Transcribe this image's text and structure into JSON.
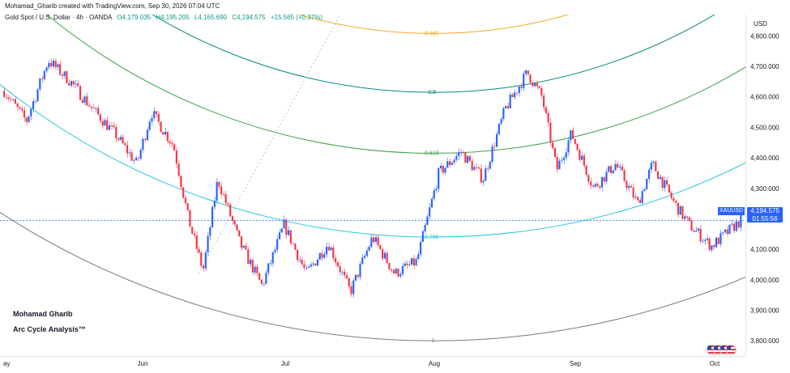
{
  "header": {
    "credit": "Mohamad_Gharib created with TradingView.com, Sep 30, 2026 07:04 UTC",
    "symbol": "Gold Spot / U.S. Dollar · 4h · OANDA",
    "open": "O4,179.035",
    "high": "H4,195.205",
    "low": "L4,165.690",
    "close": "C4,194.575",
    "change": "+15.565 (+0.37%)"
  },
  "watermark": {
    "line1": "Mohamad Gharib",
    "line2": "Arc Cycle Analysis™"
  },
  "price_tag": {
    "symbol": "XAUUSD",
    "price": "4,194.575",
    "countdown": "01:55:56"
  },
  "colors": {
    "up": "#2962ff",
    "down": "#f23645",
    "arc_0382": "#f5a623",
    "arc_05": "#00897b",
    "arc_0618": "#43a047",
    "arc_0786": "#26c6da",
    "arc_1": "#787b86"
  },
  "chart_data": {
    "type": "candlestick",
    "currency": "USD",
    "x_ticks": [
      "ay",
      "Jun",
      "Jul",
      "Aug",
      "Sep",
      "Oct"
    ],
    "y_ticks": [
      "4,800.000",
      "4,700.000",
      "4,600.000",
      "4,500.000",
      "4,400.000",
      "4,300.000",
      "4,200.000",
      "4,100.000",
      "4,000.000",
      "3,900.000",
      "3,800.000"
    ],
    "y_tick_values": [
      4800,
      4700,
      4600,
      4500,
      4400,
      4300,
      4200,
      4100,
      4000,
      3900,
      3800
    ],
    "ylim": [
      3750,
      4870
    ],
    "last_price": 4194.575,
    "path": [
      {
        "t": 0.0,
        "p": 4620
      },
      {
        "t": 0.03,
        "p": 4520
      },
      {
        "t": 0.06,
        "p": 4720
      },
      {
        "t": 0.09,
        "p": 4650
      },
      {
        "t": 0.12,
        "p": 4560
      },
      {
        "t": 0.15,
        "p": 4480
      },
      {
        "t": 0.18,
        "p": 4380
      },
      {
        "t": 0.2,
        "p": 4550
      },
      {
        "t": 0.23,
        "p": 4440
      },
      {
        "t": 0.25,
        "p": 4200
      },
      {
        "t": 0.27,
        "p": 4030
      },
      {
        "t": 0.29,
        "p": 4330
      },
      {
        "t": 0.32,
        "p": 4120
      },
      {
        "t": 0.35,
        "p": 3980
      },
      {
        "t": 0.38,
        "p": 4180
      },
      {
        "t": 0.41,
        "p": 4020
      },
      {
        "t": 0.44,
        "p": 4120
      },
      {
        "t": 0.47,
        "p": 3960
      },
      {
        "t": 0.5,
        "p": 4140
      },
      {
        "t": 0.53,
        "p": 4020
      },
      {
        "t": 0.56,
        "p": 4060
      },
      {
        "t": 0.59,
        "p": 4350
      },
      {
        "t": 0.62,
        "p": 4420
      },
      {
        "t": 0.65,
        "p": 4330
      },
      {
        "t": 0.68,
        "p": 4560
      },
      {
        "t": 0.71,
        "p": 4680
      },
      {
        "t": 0.73,
        "p": 4600
      },
      {
        "t": 0.75,
        "p": 4360
      },
      {
        "t": 0.77,
        "p": 4480
      },
      {
        "t": 0.8,
        "p": 4300
      },
      {
        "t": 0.83,
        "p": 4380
      },
      {
        "t": 0.86,
        "p": 4250
      },
      {
        "t": 0.88,
        "p": 4380
      },
      {
        "t": 0.91,
        "p": 4250
      },
      {
        "t": 0.93,
        "p": 4180
      },
      {
        "t": 0.96,
        "p": 4110
      },
      {
        "t": 1.0,
        "p": 4195
      }
    ],
    "arcs": [
      {
        "label": "0.382",
        "bottom_price": 4808,
        "color_key": "arc_0382"
      },
      {
        "label": "0.5",
        "bottom_price": 4615,
        "color_key": "arc_05"
      },
      {
        "label": "0.618",
        "bottom_price": 4415,
        "color_key": "arc_0618"
      },
      {
        "label": "0.786",
        "bottom_price": 4140,
        "color_key": "arc_0786"
      },
      {
        "label": "1",
        "bottom_price": 3800,
        "color_key": "arc_1"
      }
    ]
  }
}
